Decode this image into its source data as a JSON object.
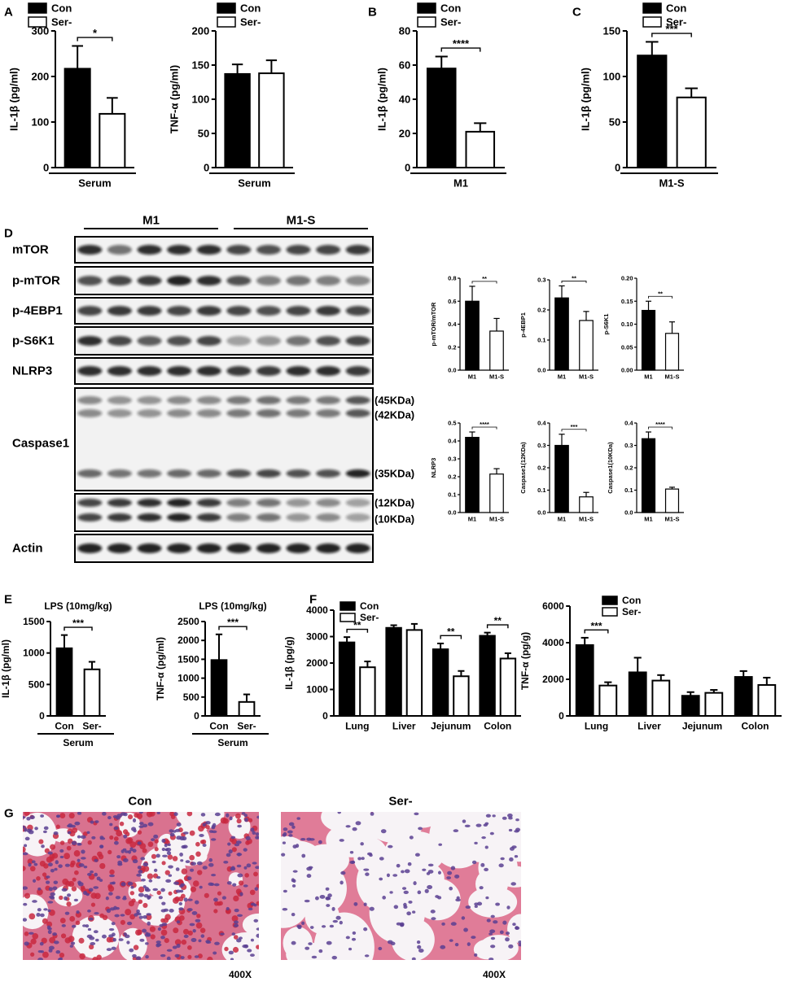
{
  "chart_data": [
    {
      "type": "bar",
      "y_label": "IL-1β (pg/ml)",
      "categories": [
        "Serum"
      ],
      "series": [
        {
          "name": "Con",
          "color": "#000000",
          "values": [
            217
          ],
          "errors": [
            50
          ]
        },
        {
          "name": "Ser-",
          "color": "#ffffff",
          "values": [
            118
          ],
          "errors": [
            35
          ]
        }
      ],
      "ylim": [
        0,
        300
      ],
      "yticks": [
        0,
        100,
        200,
        300
      ],
      "legend": "above",
      "annotations": [
        {
          "text": "*",
          "category": "Serum"
        }
      ]
    },
    {
      "type": "bar",
      "y_label": "TNF-α (pg/ml)",
      "categories": [
        "Serum"
      ],
      "series": [
        {
          "name": "Con",
          "color": "#000000",
          "values": [
            137
          ],
          "errors": [
            14
          ]
        },
        {
          "name": "Ser-",
          "color": "#ffffff",
          "values": [
            138
          ],
          "errors": [
            19
          ]
        }
      ],
      "ylim": [
        0,
        200
      ],
      "yticks": [
        0,
        50,
        100,
        150,
        200
      ],
      "legend": "above"
    },
    {
      "type": "bar",
      "y_label": "IL-1β (pg/ml)",
      "categories": [
        "M1"
      ],
      "series": [
        {
          "name": "Con",
          "color": "#000000",
          "values": [
            58
          ],
          "errors": [
            7
          ]
        },
        {
          "name": "Ser-",
          "color": "#ffffff",
          "values": [
            21
          ],
          "errors": [
            5
          ]
        }
      ],
      "ylim": [
        0,
        80
      ],
      "yticks": [
        0,
        20,
        40,
        60,
        80
      ],
      "legend": "above",
      "annotations": [
        {
          "text": "****",
          "category": "M1"
        }
      ]
    },
    {
      "type": "bar",
      "y_label": "IL-1β (pg/ml)",
      "categories": [
        "M1-S"
      ],
      "series": [
        {
          "name": "Con",
          "color": "#000000",
          "values": [
            123
          ],
          "errors": [
            15
          ]
        },
        {
          "name": "Ser-",
          "color": "#ffffff",
          "values": [
            77
          ],
          "errors": [
            10
          ]
        }
      ],
      "ylim": [
        0,
        150
      ],
      "yticks": [
        0,
        50,
        100,
        150
      ],
      "legend": "above",
      "annotations": [
        {
          "text": "***",
          "category": "M1-S"
        }
      ]
    },
    {
      "type": "bar",
      "y_label": "p-mTOR/mTOR",
      "categories": [
        "M1",
        "M1-S"
      ],
      "values": [
        0.6,
        0.34
      ],
      "errors": [
        0.13,
        0.11
      ],
      "colors": [
        "#000000",
        "#ffffff"
      ],
      "ylim": [
        0,
        0.8
      ],
      "yticks": [
        {
          "value": 0,
          "label": "0.0"
        },
        0.2,
        0.4,
        0.6,
        0.8
      ],
      "annotations": [
        {
          "text": "**"
        }
      ]
    },
    {
      "type": "bar",
      "y_label": "p-4EBP1",
      "categories": [
        "M1",
        "M1-S"
      ],
      "values": [
        0.24,
        0.165
      ],
      "errors": [
        0.04,
        0.03
      ],
      "colors": [
        "#000000",
        "#ffffff"
      ],
      "ylim": [
        0,
        0.3
      ],
      "yticks": [
        {
          "value": 0,
          "label": "0.0"
        },
        0.1,
        0.2,
        0.3
      ],
      "annotations": [
        {
          "text": "**"
        }
      ]
    },
    {
      "type": "bar",
      "y_label": "p-S6K1",
      "categories": [
        "M1",
        "M1-S"
      ],
      "values": [
        0.13,
        0.08
      ],
      "errors": [
        0.02,
        0.025
      ],
      "colors": [
        "#000000",
        "#ffffff"
      ],
      "ylim": [
        0,
        0.2
      ],
      "yticks": [
        {
          "value": 0,
          "label": "0.00"
        },
        0.05,
        {
          "value": 0.1,
          "label": "0.10"
        },
        0.15,
        {
          "value": 0.2,
          "label": "0.20"
        }
      ],
      "annotations": [
        {
          "text": "**"
        }
      ]
    },
    {
      "type": "bar",
      "y_label": "NLRP3",
      "categories": [
        "M1",
        "M1-S"
      ],
      "values": [
        0.42,
        0.215
      ],
      "errors": [
        0.03,
        0.03
      ],
      "colors": [
        "#000000",
        "#ffffff"
      ],
      "ylim": [
        0,
        0.5
      ],
      "yticks": [
        {
          "value": 0,
          "label": "0.0"
        },
        0.1,
        0.2,
        0.3,
        0.4,
        0.5
      ],
      "annotations": [
        {
          "text": "****"
        }
      ]
    },
    {
      "type": "bar",
      "y_label": "Caspase1(12KDa)",
      "categories": [
        "M1",
        "M1-S"
      ],
      "values": [
        0.3,
        0.07
      ],
      "errors": [
        0.05,
        0.02
      ],
      "colors": [
        "#000000",
        "#ffffff"
      ],
      "ylim": [
        0,
        0.4
      ],
      "yticks": [
        {
          "value": 0,
          "label": "0.0"
        },
        0.1,
        0.2,
        0.3,
        0.4
      ],
      "annotations": [
        {
          "text": "***"
        }
      ]
    },
    {
      "type": "bar",
      "y_label": "Caspase1(10KDa)",
      "categories": [
        "M1",
        "M1-S"
      ],
      "values": [
        0.33,
        0.105
      ],
      "errors": [
        0.03,
        0.008
      ],
      "colors": [
        "#000000",
        "#ffffff"
      ],
      "ylim": [
        0,
        0.4
      ],
      "yticks": [
        {
          "value": 0,
          "label": "0.0"
        },
        0.1,
        0.2,
        0.3,
        0.4
      ],
      "annotations": [
        {
          "text": "****"
        }
      ]
    },
    {
      "type": "bar",
      "title": "LPS (10mg/kg)",
      "y_label": "IL-1β (pg/ml)",
      "x_label": "Serum",
      "categories": [
        "Con",
        "Ser-"
      ],
      "values": [
        1075,
        740
      ],
      "errors": [
        210,
        120
      ],
      "colors": [
        "#000000",
        "#ffffff"
      ],
      "ylim": [
        0,
        1500
      ],
      "yticks": [
        0,
        500,
        1000,
        1500
      ],
      "annotations": [
        {
          "text": "***"
        }
      ]
    },
    {
      "type": "bar",
      "title": "LPS (10mg/kg)",
      "y_label": "TNF-α (pg/ml)",
      "x_label": "Serum",
      "categories": [
        "Con",
        "Ser-"
      ],
      "values": [
        1480,
        370
      ],
      "errors": [
        680,
        200
      ],
      "colors": [
        "#000000",
        "#ffffff"
      ],
      "ylim": [
        0,
        2500
      ],
      "yticks": [
        0,
        500,
        1000,
        1500,
        2000,
        2500
      ],
      "annotations": [
        {
          "text": "***"
        }
      ]
    },
    {
      "type": "bar",
      "y_label": "IL-1β (pg/g)",
      "categories": [
        "Lung",
        "Liver",
        "Jejunum",
        "Colon"
      ],
      "series": [
        {
          "name": "Con",
          "color": "#000000",
          "values": [
            2780,
            3330,
            2520,
            3030
          ],
          "errors": [
            200,
            100,
            220,
            120
          ]
        },
        {
          "name": "Ser-",
          "color": "#ffffff",
          "values": [
            1840,
            3250,
            1500,
            2170
          ],
          "errors": [
            220,
            230,
            200,
            200
          ]
        }
      ],
      "ylim": [
        0,
        4000
      ],
      "yticks": [
        0,
        1000,
        2000,
        3000,
        4000
      ],
      "legend": "upper left",
      "annotations": [
        {
          "text": "**",
          "category": "Lung"
        },
        {
          "text": "**",
          "category": "Jejunum"
        },
        {
          "text": "**",
          "category": "Colon"
        }
      ]
    },
    {
      "type": "bar",
      "y_label": "TNF-α (pg/g)",
      "categories": [
        "Lung",
        "Liver",
        "Jejunum",
        "Colon"
      ],
      "series": [
        {
          "name": "Con",
          "color": "#000000",
          "values": [
            3870,
            2380,
            1100,
            2130
          ],
          "errors": [
            400,
            800,
            200,
            320
          ]
        },
        {
          "name": "Ser-",
          "color": "#ffffff",
          "values": [
            1660,
            1930,
            1260,
            1690
          ],
          "errors": [
            180,
            300,
            160,
            400
          ]
        }
      ],
      "ylim": [
        0,
        6000
      ],
      "yticks": [
        0,
        2000,
        4000,
        6000
      ],
      "legend": "upper left",
      "annotations": [
        {
          "text": "***",
          "category": "Lung"
        }
      ]
    }
  ],
  "panel_labels": [
    "A",
    "B",
    "C",
    "D",
    "E",
    "F",
    "G"
  ],
  "blot": {
    "groups": [
      "M1",
      "M1-S"
    ],
    "rows": [
      "mTOR",
      "p-mTOR",
      "p-4EBP1",
      "p-S6K1",
      "NLRP3",
      "Caspase1",
      "Actin"
    ],
    "sizes": [
      "(45KDa)",
      "(42KDa)",
      "(35KDa)",
      "(12KDa)",
      "(10KDa)"
    ]
  },
  "histology": {
    "panels": [
      {
        "label": "Con",
        "magnification": "400X"
      },
      {
        "label": "Ser-",
        "magnification": "400X"
      }
    ]
  }
}
